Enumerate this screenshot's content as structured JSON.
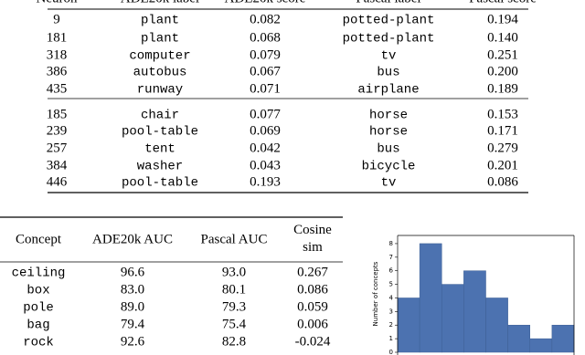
{
  "top_table": {
    "header": [
      "Neuron",
      "ADE20k label",
      "ADE20k score",
      "Pascal label",
      "Pascal score"
    ],
    "groups": [
      [
        [
          "9",
          "plant",
          "0.082",
          "potted-plant",
          "0.194"
        ],
        [
          "181",
          "plant",
          "0.068",
          "potted-plant",
          "0.140"
        ],
        [
          "318",
          "computer",
          "0.079",
          "tv",
          "0.251"
        ],
        [
          "386",
          "autobus",
          "0.067",
          "bus",
          "0.200"
        ],
        [
          "435",
          "runway",
          "0.071",
          "airplane",
          "0.189"
        ]
      ],
      [
        [
          "185",
          "chair",
          "0.077",
          "horse",
          "0.153"
        ],
        [
          "239",
          "pool-table",
          "0.069",
          "horse",
          "0.171"
        ],
        [
          "257",
          "tent",
          "0.042",
          "bus",
          "0.279"
        ],
        [
          "384",
          "washer",
          "0.043",
          "bicycle",
          "0.201"
        ],
        [
          "446",
          "pool-table",
          "0.193",
          "tv",
          "0.086"
        ]
      ]
    ]
  },
  "bottom_table": {
    "header": [
      "Concept",
      "ADE20k AUC",
      "Pascal AUC",
      "Cosine sim"
    ],
    "rows": [
      [
        "ceiling",
        "96.6",
        "93.0",
        "0.267"
      ],
      [
        "box",
        "83.0",
        "80.1",
        "0.086"
      ],
      [
        "pole",
        "89.0",
        "79.3",
        "0.059"
      ],
      [
        "bag",
        "79.4",
        "75.4",
        "0.006"
      ],
      [
        "rock",
        "92.6",
        "82.8",
        "-0.024"
      ]
    ]
  },
  "chart_data": {
    "type": "bar",
    "ylabel": "Number of concepts",
    "categories": [
      null,
      null,
      null,
      null,
      null,
      null,
      null,
      null
    ],
    "values": [
      4,
      8,
      5,
      6,
      4,
      2,
      1,
      2
    ],
    "color": "#4c72b0",
    "ylim": [
      0,
      8.6
    ],
    "yticks": [
      0,
      1,
      2,
      3,
      4,
      5,
      6,
      7,
      8
    ]
  }
}
